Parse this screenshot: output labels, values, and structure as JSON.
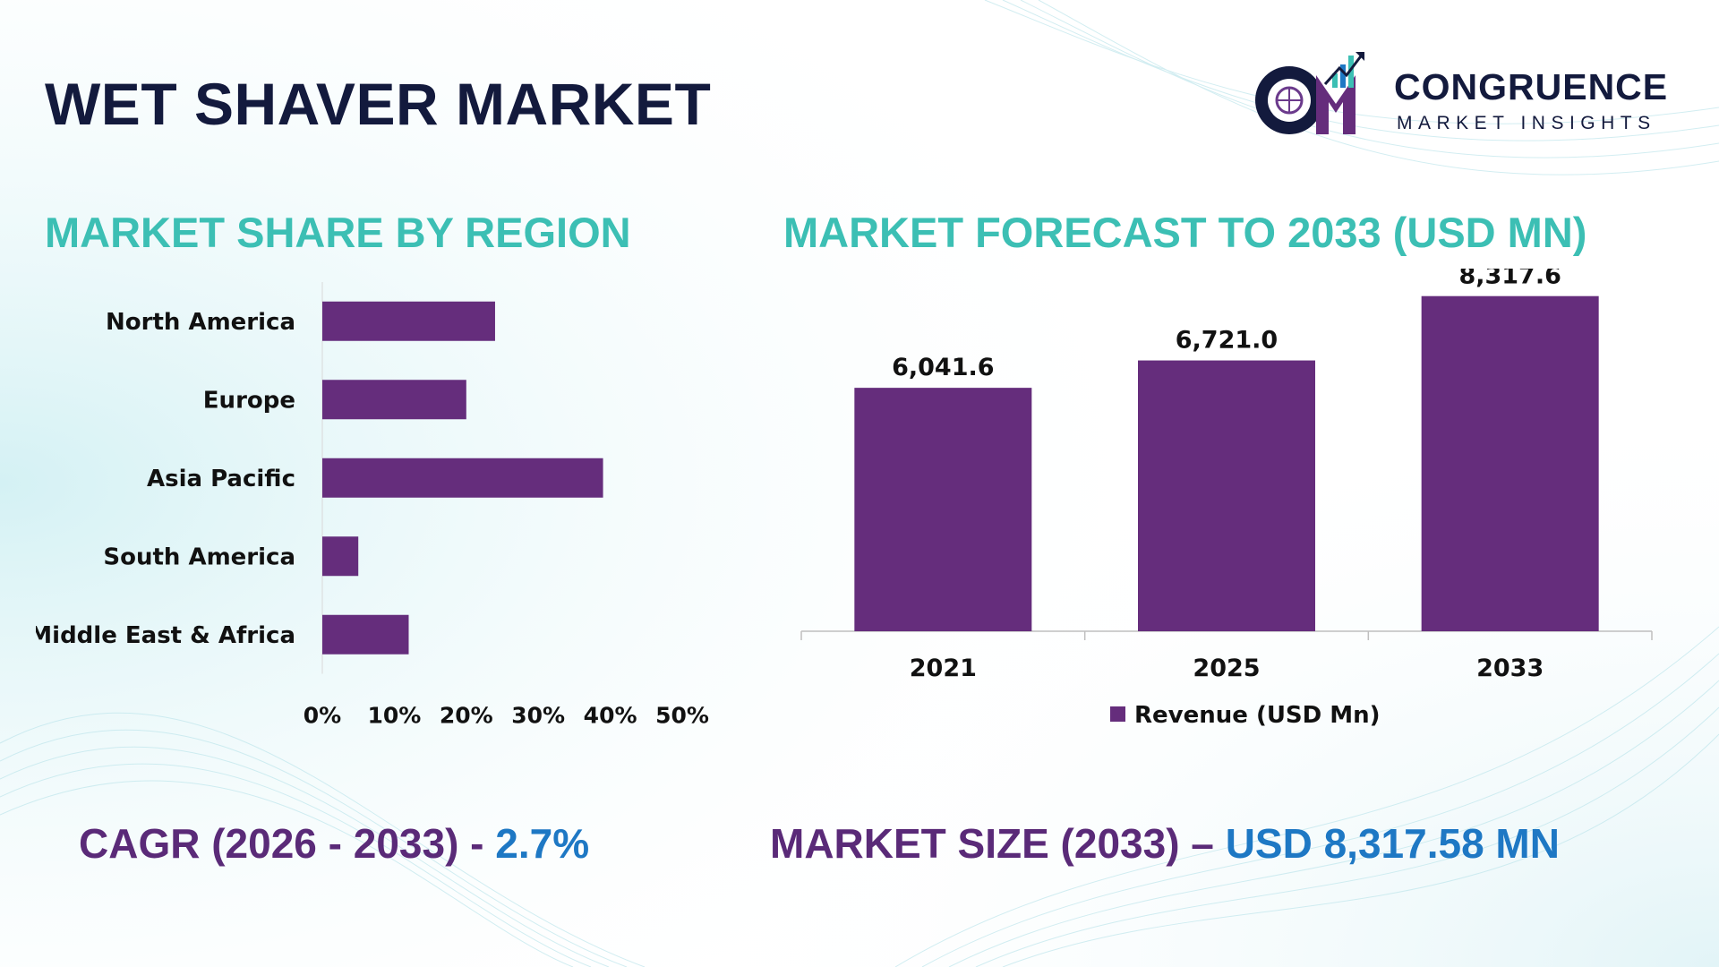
{
  "title": "WET SHAVER MARKET",
  "logo": {
    "name": "CONGRUENCE",
    "tagline": "MARKET INSIGHTS"
  },
  "colors": {
    "bar": "#652d7c",
    "title_dark": "#131a3d",
    "section_teal": "#3cbfb4",
    "stat_purple": "#5a2a78",
    "stat_blue": "#1e78c4"
  },
  "left_section_title": "MARKET SHARE BY REGION",
  "right_section_title": "MARKET FORECAST TO 2033 (USD MN)",
  "cagr": {
    "label": "CAGR (2026 - 2033) - ",
    "value": "2.7%"
  },
  "market_size": {
    "label": "MARKET SIZE (2033) – ",
    "value": "USD 8,317.58 MN"
  },
  "chart_data": [
    {
      "type": "bar",
      "orientation": "horizontal",
      "categories": [
        "North America",
        "Europe",
        "Asia Pacific",
        "South America",
        "Middle East & Africa"
      ],
      "values": [
        24,
        20,
        39,
        5,
        12
      ],
      "unit": "%",
      "xlim": [
        0,
        50
      ],
      "xticks": [
        "0%",
        "10%",
        "20%",
        "30%",
        "40%",
        "50%"
      ],
      "grid": false
    },
    {
      "type": "bar",
      "categories": [
        "2021",
        "2025",
        "2033"
      ],
      "values": [
        6041.6,
        6721.0,
        8317.6
      ],
      "data_labels": [
        "6,041.6",
        "6,721.0",
        "8,317.6"
      ],
      "series": [
        {
          "name": "Revenue (USD Mn)",
          "values": [
            6041.6,
            6721.0,
            8317.6
          ]
        }
      ],
      "legend": "bottom",
      "ylim": [
        0,
        9000
      ],
      "grid": false
    }
  ]
}
